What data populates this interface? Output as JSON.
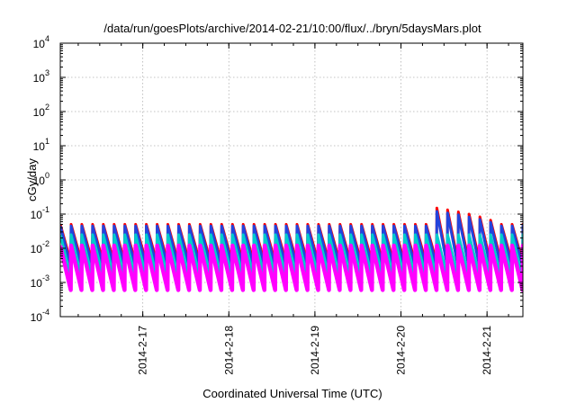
{
  "chart_data": {
    "type": "line",
    "title": "/data/run/goesPlots/archive/2014-02-21/10:00/flux/../bryn/5daysMars.plot",
    "xlabel": "Coordinated Universal Time (UTC)",
    "ylabel": "cGy/day",
    "y_scale": "log",
    "ylim_exp": [
      -4,
      4
    ],
    "y_ticks": [
      {
        "base": "10",
        "exp": "-4"
      },
      {
        "base": "10",
        "exp": "-3"
      },
      {
        "base": "10",
        "exp": "-2"
      },
      {
        "base": "10",
        "exp": "-1"
      },
      {
        "base": "10",
        "exp": "0"
      },
      {
        "base": "10",
        "exp": "1"
      },
      {
        "base": "10",
        "exp": "2"
      },
      {
        "base": "10",
        "exp": "3"
      },
      {
        "base": "10",
        "exp": "4"
      }
    ],
    "x_range": [
      "2014-02-16 01:00",
      "2014-02-21 10:00"
    ],
    "x_ticks": [
      "2014-2-17",
      "2014-2-18",
      "2014-2-19",
      "2014-2-20",
      "2014-2-21"
    ],
    "grid": true,
    "legend": "none",
    "series": [
      {
        "color": "#ff00ff",
        "cycle_hours": 3,
        "baseline": 0.0006,
        "peak": 0.012
      },
      {
        "color": "#00cccc",
        "cycle_hours": 3,
        "baseline": 0.0015,
        "peak": 0.025
      },
      {
        "color": "#ff0000",
        "cycle_hours": 3,
        "baseline": 0.004,
        "peak": 0.05,
        "event": {
          "time": "2014-02-20 10:00",
          "peak": 0.15
        }
      },
      {
        "color": "#2244dd",
        "cycle_hours": 3,
        "baseline": 0.003,
        "peak": 0.045,
        "event": {
          "time": "2014-02-20 10:00",
          "peak": 0.12
        }
      }
    ]
  }
}
